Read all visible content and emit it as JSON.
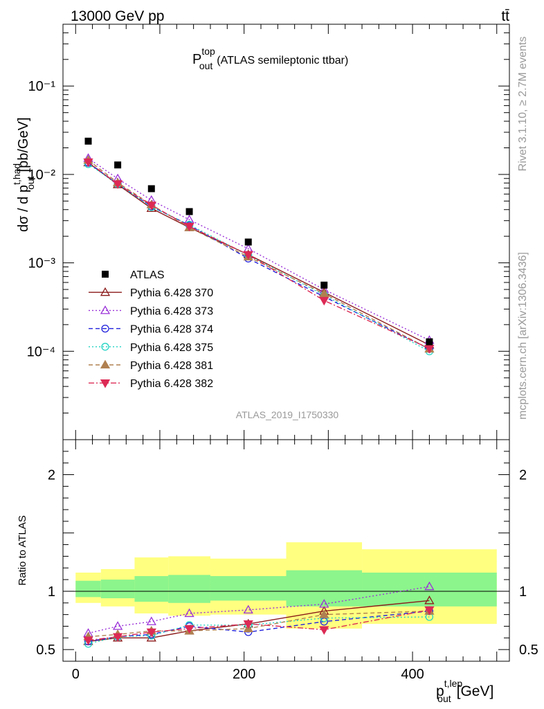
{
  "header": {
    "left": "13000 GeV pp",
    "right": "tt̄"
  },
  "side": {
    "rivet": "Rivet 3.1.10, ≥ 2.7M events",
    "mcplots": "mcplots.cern.ch [arXiv:1306.3436]"
  },
  "chart_data": {
    "type": "scatter",
    "title_main": "P",
    "title_sup": "top",
    "title_sub": "out",
    "title_rest": "(ATLAS semileptonic ttbar)",
    "watermark": "ATLAS_2019_I1750330",
    "ylabel_main": "dσ / d p",
    "ylabel_sup": "t,had",
    "ylabel_sub": "out",
    "ylabel_unit": "[pb/GeV]",
    "xlabel_main": "p",
    "xlabel_sup": "t,lep",
    "xlabel_sub": "out",
    "xlabel_unit": "[GeV]",
    "ratio_ylabel": "Ratio to ATLAS",
    "xlim": [
      -15,
      515
    ],
    "ylim": [
      1e-05,
      0.5
    ],
    "ratio_ylim": [
      0.4,
      2.3
    ],
    "x_ticks": [
      "0",
      "200",
      "400"
    ],
    "x_tick_values": [
      0,
      200,
      400
    ],
    "y_ticks": [
      "10⁻⁴",
      "10⁻³",
      "10⁻²",
      "10⁻¹"
    ],
    "y_tick_values": [
      0.0001,
      0.001,
      0.01,
      0.1
    ],
    "ratio_ticks": [
      "0.5",
      "1",
      "2"
    ],
    "ratio_tick_values": [
      0.5,
      1,
      2
    ],
    "x": [
      15,
      50,
      90,
      135,
      205,
      295,
      420
    ],
    "bins": [
      [
        0,
        30
      ],
      [
        30,
        70
      ],
      [
        70,
        110
      ],
      [
        110,
        160
      ],
      [
        160,
        250
      ],
      [
        250,
        340
      ],
      [
        340,
        500
      ]
    ],
    "band_green": [
      [
        0.95,
        1.09
      ],
      [
        0.94,
        1.1
      ],
      [
        0.91,
        1.13
      ],
      [
        0.9,
        1.14
      ],
      [
        0.92,
        1.13
      ],
      [
        0.87,
        1.18
      ],
      [
        0.87,
        1.16
      ]
    ],
    "band_yellow": [
      [
        0.9,
        1.16
      ],
      [
        0.87,
        1.19
      ],
      [
        0.81,
        1.29
      ],
      [
        0.79,
        1.3
      ],
      [
        0.8,
        1.28
      ],
      [
        0.68,
        1.42
      ],
      [
        0.72,
        1.36
      ]
    ],
    "atlas": {
      "name": "ATLAS",
      "values": [
        0.0238,
        0.0128,
        0.0069,
        0.0038,
        0.00172,
        0.00056,
        0.000128
      ]
    },
    "series": [
      {
        "name": "Pythia 6.428 370",
        "color": "#8b1a1a",
        "marker": "tri-up-open",
        "dash": "",
        "ratio": [
          0.57,
          0.6,
          0.6,
          0.66,
          0.72,
          0.83,
          0.92
        ]
      },
      {
        "name": "Pythia 6.428 373",
        "color": "#9a30d8",
        "marker": "tri-up-open",
        "dash": "2,3",
        "ratio": [
          0.64,
          0.7,
          0.74,
          0.81,
          0.84,
          0.89,
          1.04
        ]
      },
      {
        "name": "Pythia 6.428 374",
        "color": "#1f1fdc",
        "marker": "circle-open",
        "dash": "6,4",
        "ratio": [
          0.57,
          0.61,
          0.63,
          0.7,
          0.65,
          0.74,
          0.83
        ]
      },
      {
        "name": "Pythia 6.428 375",
        "color": "#22d3c4",
        "marker": "circle-open",
        "dash": "2,3",
        "ratio": [
          0.55,
          0.61,
          0.62,
          0.71,
          0.71,
          0.77,
          0.78
        ]
      },
      {
        "name": "Pythia 6.428 381",
        "color": "#b08050",
        "marker": "tri-up-filled",
        "dash": "6,4",
        "ratio": [
          0.61,
          0.63,
          0.66,
          0.66,
          0.68,
          0.8,
          0.83
        ]
      },
      {
        "name": "Pythia 6.428 382",
        "color": "#dc2a55",
        "marker": "tri-down-filled",
        "dash": "8,3,2,3",
        "ratio": [
          0.58,
          0.61,
          0.65,
          0.68,
          0.72,
          0.67,
          0.84
        ]
      }
    ]
  }
}
